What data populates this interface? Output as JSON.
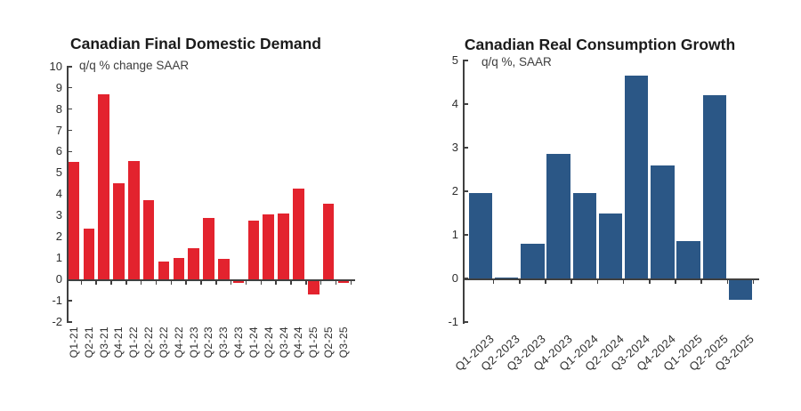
{
  "chart_data": [
    {
      "type": "bar",
      "title": "Canadian Final Domestic Demand",
      "subtitle": "q/q % change SAAR",
      "categories": [
        "Q1-21",
        "Q2-21",
        "Q3-21",
        "Q4-21",
        "Q1-22",
        "Q2-22",
        "Q3-22",
        "Q4-22",
        "Q1-23",
        "Q2-23",
        "Q3-23",
        "Q4-23",
        "Q1-24",
        "Q2-24",
        "Q3-24",
        "Q4-24",
        "Q1-25",
        "Q2-25",
        "Q3-25"
      ],
      "values": [
        5.5,
        2.4,
        8.7,
        4.5,
        5.55,
        3.7,
        0.85,
        1.0,
        1.45,
        2.9,
        0.95,
        -0.1,
        2.75,
        3.05,
        3.1,
        4.25,
        -0.65,
        3.55,
        -0.1
      ],
      "ylim": [
        -2,
        10
      ],
      "ytick_step": 1,
      "bar_color": "#e3232e",
      "xlabel_rotation": 90,
      "grid": false,
      "legend": "none"
    },
    {
      "type": "bar",
      "title": "Canadian Real Consumption Growth",
      "subtitle": "q/q %, SAAR",
      "categories": [
        "Q1-2023",
        "Q2-2023",
        "Q3-2023",
        "Q4-2023",
        "Q1-2024",
        "Q2-2024",
        "Q3-2024",
        "Q4-2024",
        "Q1-2025",
        "Q2-2025",
        "Q3-2025"
      ],
      "values": [
        1.95,
        0.03,
        0.8,
        2.85,
        1.95,
        1.5,
        4.65,
        2.6,
        0.85,
        4.2,
        -0.45
      ],
      "ylim": [
        -1,
        5
      ],
      "ytick_step": 1,
      "bar_color": "#2b5786",
      "xlabel_rotation": 45,
      "grid": false,
      "legend": "none"
    }
  ]
}
